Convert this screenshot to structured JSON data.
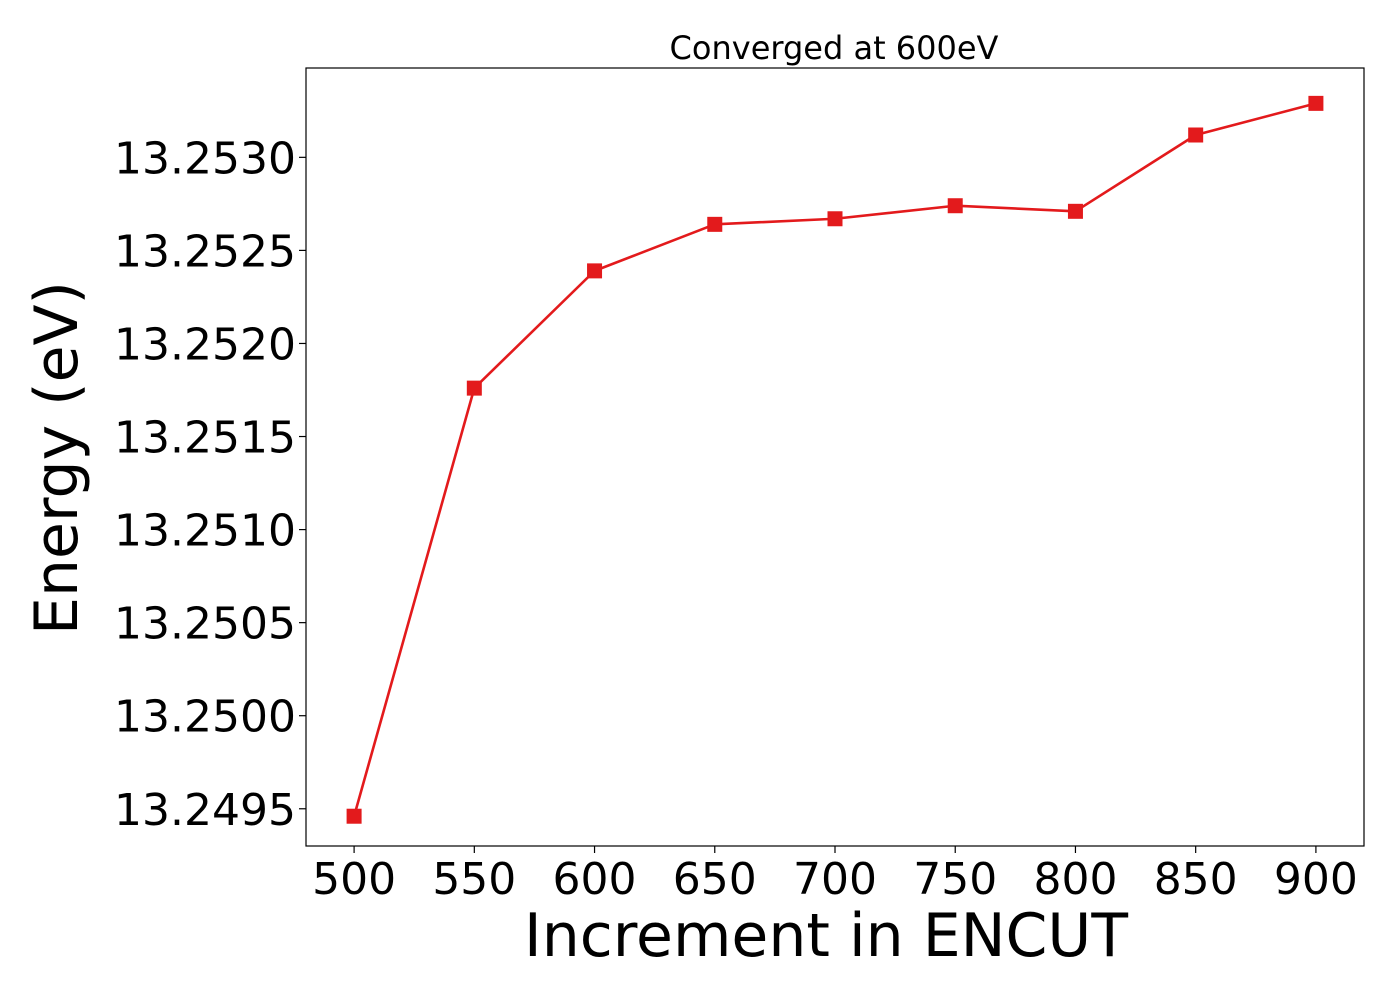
{
  "chart_data": {
    "type": "line",
    "title": "Converged at 600eV",
    "xlabel": "Increment in ENCUT",
    "ylabel": "Energy (eV)",
    "x": [
      500,
      550,
      600,
      650,
      700,
      750,
      800,
      850,
      900
    ],
    "series": [
      {
        "values": [
          13.24946,
          13.25176,
          13.25239,
          13.25264,
          13.25267,
          13.25274,
          13.25271,
          13.25312,
          13.25329
        ],
        "color": "#e31a1c",
        "marker": "square"
      }
    ],
    "xlim": [
      480,
      920
    ],
    "ylim": [
      13.2493,
      13.25348
    ],
    "xticks": [
      500,
      550,
      600,
      650,
      700,
      750,
      800,
      850,
      900
    ],
    "xtick_labels": [
      "500",
      "550",
      "600",
      "650",
      "700",
      "750",
      "800",
      "850",
      "900"
    ],
    "yticks": [
      13.2495,
      13.25,
      13.2505,
      13.251,
      13.2515,
      13.252,
      13.2525,
      13.253
    ],
    "ytick_labels": [
      "13.2495",
      "13.2500",
      "13.2505",
      "13.2510",
      "13.2515",
      "13.2520",
      "13.2525",
      "13.2530"
    ],
    "grid": false,
    "legend": false
  }
}
